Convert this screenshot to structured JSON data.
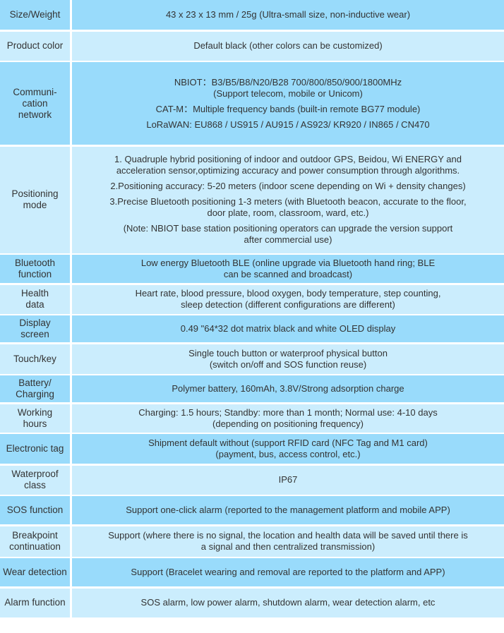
{
  "colors": {
    "dark_row": "#99dbfb",
    "light_row": "#cbedfd",
    "text": "#333333"
  },
  "rows": [
    {
      "label": "Size/Weight",
      "lines": [
        "43 x 23 x 13 mm / 25g (Ultra-small size, non-inductive wear)"
      ]
    },
    {
      "label": "Product color",
      "lines": [
        "Default black (other colors can be customized)"
      ]
    },
    {
      "label": "Communi-\ncation\nnetwork",
      "lines": [
        "NBIOT：B3/B5/B8/N20/B28    700/800/850/900/1800MHz\n(Support telecom, mobile or Unicom)",
        "CAT-M：Multiple frequency bands (built-in remote BG77 module)",
        "LoRaWAN:  EU868 / US915 / AU915 / AS923/ KR920 / IN865 / CN470"
      ]
    },
    {
      "label": "Positioning\nmode",
      "lines": [
        "1. Quadruple hybrid positioning of indoor and outdoor GPS, Beidou, Wi ENERGY and\nacceleration sensor,optimizing accuracy and power consumption through algorithms.",
        "2.Positioning accuracy: 5-20 meters (indoor scene depending on Wi + density changes)",
        "3.Precise Bluetooth positioning 1-3 meters (with Bluetooth beacon, accurate to the floor,\ndoor plate, room, classroom, ward, etc.)",
        "(Note: NBIOT base station positioning operators can upgrade the version support\nafter commercial use)"
      ]
    },
    {
      "label": "Bluetooth\nfunction",
      "lines": [
        "Low energy Bluetooth BLE (online upgrade via Bluetooth hand ring; BLE\ncan be scanned and broadcast)"
      ]
    },
    {
      "label": "Health\ndata",
      "lines": [
        "Heart rate, blood pressure, blood oxygen, body temperature, step counting,\nsleep detection (different configurations are different)"
      ]
    },
    {
      "label": "Display\nscreen",
      "lines": [
        "0.49 \"64*32 dot matrix black and white OLED display"
      ]
    },
    {
      "label": "Touch/key",
      "lines": [
        "Single touch button or waterproof physical button\n(switch on/off and SOS function reuse)"
      ]
    },
    {
      "label": "Battery/\nCharging",
      "lines": [
        "Polymer battery, 160mAh, 3.8V/Strong adsorption charge"
      ]
    },
    {
      "label": "Working\nhours",
      "lines": [
        "Charging: 1.5 hours; Standby: more than 1 month; Normal use: 4-10 days\n(depending on positioning frequency)"
      ]
    },
    {
      "label": "Electronic tag",
      "lines": [
        "Shipment default without (support RFID card (NFC Tag and M1 card)\n(payment, bus, access control, etc.)"
      ]
    },
    {
      "label": "Waterproof\nclass",
      "lines": [
        "IP67"
      ]
    },
    {
      "label": "SOS function",
      "lines": [
        "Support one-click alarm (reported to the management platform and mobile APP)"
      ]
    },
    {
      "label": "Breakpoint\ncontinuation",
      "lines": [
        "Support (where there is no signal, the location and health data will be saved until there is\na signal and then centralized transmission)"
      ]
    },
    {
      "label": "Wear detection",
      "lines": [
        "Support (Bracelet wearing and removal are reported to the platform and APP)"
      ]
    },
    {
      "label": "Alarm function",
      "lines": [
        "SOS alarm, low power alarm, shutdown alarm, wear detection alarm, etc"
      ]
    }
  ]
}
